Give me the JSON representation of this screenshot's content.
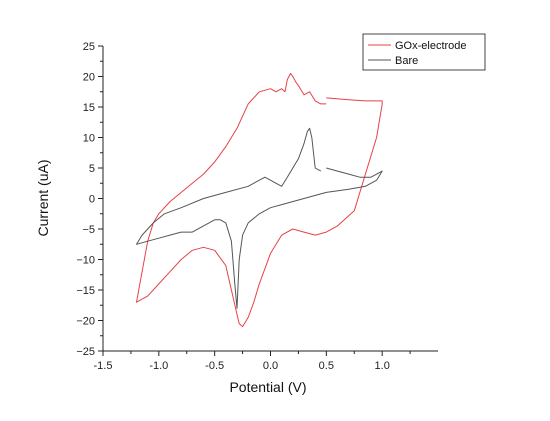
{
  "chart_data": {
    "type": "line",
    "xlabel": "Potential (V)",
    "ylabel": "Current (uA)",
    "xlim": [
      -1.5,
      1.5
    ],
    "ylim": [
      -25,
      25
    ],
    "xticks": [
      -1.5,
      -1.0,
      -0.5,
      0.0,
      0.5,
      1.0
    ],
    "xtick_labels": [
      "-1.5",
      "-1.0",
      "-0.5",
      "0.0",
      "0.5",
      "1.0"
    ],
    "yticks": [
      -25,
      -20,
      -15,
      -10,
      -5,
      0,
      5,
      10,
      15,
      20,
      25
    ],
    "ytick_labels": [
      "−25",
      "−20",
      "−15",
      "−10",
      "−5",
      "0",
      "5",
      "10",
      "15",
      "20",
      "25"
    ],
    "grid": false,
    "legend_position": "top-right",
    "series": [
      {
        "name": "GOx-electrode",
        "color": "#e8404a",
        "x": [
          0.5,
          0.7,
          0.85,
          0.95,
          1.0,
          1.0,
          0.95,
          0.85,
          0.75,
          0.6,
          0.5,
          0.4,
          0.3,
          0.2,
          0.1,
          0.0,
          -0.1,
          -0.15,
          -0.2,
          -0.25,
          -0.28,
          -0.3,
          -0.35,
          -0.4,
          -0.5,
          -0.6,
          -0.7,
          -0.8,
          -0.9,
          -1.0,
          -1.1,
          -1.2,
          -1.15,
          -1.1,
          -1.05,
          -1.0,
          -0.9,
          -0.8,
          -0.7,
          -0.6,
          -0.5,
          -0.4,
          -0.3,
          -0.2,
          -0.1,
          0.0,
          0.05,
          0.08,
          0.1,
          0.13,
          0.15,
          0.18,
          0.2,
          0.23,
          0.25,
          0.3,
          0.35,
          0.4,
          0.45,
          0.5
        ],
        "y": [
          16.5,
          16.2,
          16.0,
          16.0,
          16.0,
          15.5,
          10.0,
          4.0,
          -2.0,
          -4.5,
          -5.5,
          -6.0,
          -5.5,
          -5.0,
          -6.0,
          -9.0,
          -14.0,
          -17.0,
          -19.5,
          -21.0,
          -20.5,
          -19.0,
          -15.0,
          -11.0,
          -8.5,
          -8.0,
          -8.5,
          -10.0,
          -12.0,
          -14.0,
          -16.0,
          -17.0,
          -12.0,
          -7.0,
          -4.0,
          -2.5,
          -0.5,
          1.0,
          2.5,
          4.0,
          6.0,
          8.5,
          11.5,
          15.5,
          17.5,
          18.0,
          17.5,
          17.8,
          18.0,
          17.5,
          19.5,
          20.5,
          20.0,
          19.0,
          18.5,
          17.0,
          17.5,
          16.0,
          15.5,
          15.5
        ]
      },
      {
        "name": "Bare",
        "color": "#555555",
        "x": [
          0.5,
          0.6,
          0.7,
          0.8,
          0.9,
          1.0,
          0.95,
          0.85,
          0.7,
          0.5,
          0.3,
          0.1,
          0.0,
          -0.1,
          -0.2,
          -0.25,
          -0.28,
          -0.3,
          -0.32,
          -0.35,
          -0.4,
          -0.45,
          -0.5,
          -0.6,
          -0.7,
          -0.8,
          -0.9,
          -1.0,
          -1.1,
          -1.2,
          -1.15,
          -1.05,
          -0.95,
          -0.8,
          -0.6,
          -0.4,
          -0.2,
          -0.1,
          -0.05,
          0.0,
          0.05,
          0.1,
          0.15,
          0.2,
          0.25,
          0.3,
          0.33,
          0.35,
          0.37,
          0.4,
          0.45
        ],
        "y": [
          5.0,
          4.5,
          4.0,
          3.5,
          3.5,
          4.5,
          3.0,
          2.0,
          1.5,
          1.0,
          0.0,
          -1.0,
          -1.5,
          -2.5,
          -4.0,
          -6.0,
          -10.0,
          -18.0,
          -14.0,
          -7.0,
          -4.0,
          -3.5,
          -3.5,
          -4.5,
          -5.5,
          -5.5,
          -6.0,
          -6.5,
          -7.0,
          -7.5,
          -6.0,
          -4.0,
          -2.5,
          -1.5,
          0.0,
          1.0,
          2.0,
          3.0,
          3.5,
          3.0,
          2.5,
          2.0,
          3.5,
          5.0,
          6.5,
          9.0,
          11.0,
          11.5,
          10.0,
          5.0,
          4.5
        ]
      }
    ]
  }
}
